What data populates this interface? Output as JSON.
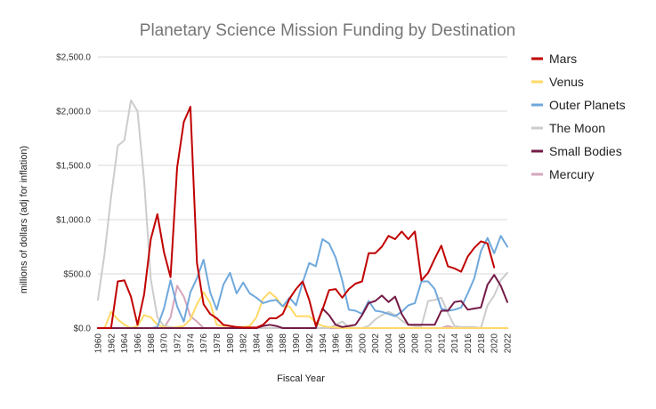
{
  "chart_data": {
    "type": "line",
    "title": "Planetary Science Mission Funding by Destination",
    "xlabel": "Fiscal Year",
    "ylabel": "millions of dollars (adj for inflation)",
    "xlim": [
      1960,
      2022
    ],
    "ylim": [
      0,
      2500
    ],
    "y_ticks": [
      0,
      500,
      1000,
      1500,
      2000,
      2500
    ],
    "y_tick_labels": [
      "$0.0",
      "$500.0",
      "$1,000.0",
      "$1,500.0",
      "$2,000.0",
      "$2,500.0"
    ],
    "x_tick_labels": [
      "1960",
      "1962",
      "1964",
      "1966",
      "1968",
      "1970",
      "1972",
      "1974",
      "1976",
      "1978",
      "1980",
      "1982",
      "1984",
      "1986",
      "1988",
      "1990",
      "1992",
      "1994",
      "1996",
      "1998",
      "2000",
      "2002",
      "2004",
      "2006",
      "2008",
      "2010",
      "2012",
      "2014",
      "2016",
      "2018",
      "2020",
      "2022"
    ],
    "grid": "horizontal",
    "legend_position": "right",
    "x": [
      1960,
      1961,
      1962,
      1963,
      1964,
      1965,
      1966,
      1967,
      1968,
      1969,
      1970,
      1971,
      1972,
      1973,
      1974,
      1975,
      1976,
      1977,
      1978,
      1979,
      1980,
      1981,
      1982,
      1983,
      1984,
      1985,
      1986,
      1987,
      1988,
      1989,
      1990,
      1991,
      1992,
      1993,
      1994,
      1995,
      1996,
      1997,
      1998,
      1999,
      2000,
      2001,
      2002,
      2003,
      2004,
      2005,
      2006,
      2007,
      2008,
      2009,
      2010,
      2011,
      2012,
      2013,
      2014,
      2015,
      2016,
      2017,
      2018,
      2019,
      2020,
      2021,
      2022
    ],
    "series": [
      {
        "name": "Mars",
        "color": "#c00000",
        "values": [
          0,
          0,
          0,
          430,
          440,
          290,
          30,
          310,
          820,
          1050,
          700,
          470,
          1480,
          1900,
          2040,
          600,
          220,
          130,
          90,
          30,
          20,
          10,
          5,
          5,
          5,
          30,
          90,
          90,
          130,
          270,
          360,
          430,
          260,
          20,
          170,
          350,
          360,
          280,
          360,
          410,
          430,
          690,
          690,
          750,
          850,
          820,
          890,
          820,
          890,
          440,
          510,
          640,
          760,
          570,
          550,
          520,
          660,
          740,
          800,
          780,
          560,
          null,
          null
        ]
      },
      {
        "name": "Venus",
        "color": "#ffd966",
        "values": [
          0,
          0,
          150,
          80,
          30,
          0,
          20,
          120,
          100,
          30,
          10,
          0,
          10,
          20,
          80,
          220,
          330,
          230,
          30,
          20,
          20,
          10,
          10,
          20,
          100,
          270,
          330,
          280,
          200,
          200,
          110,
          110,
          110,
          50,
          20,
          10,
          5,
          0,
          0,
          0,
          0,
          0,
          0,
          0,
          0,
          0,
          0,
          0,
          0,
          0,
          0,
          0,
          0,
          0,
          0,
          0,
          0,
          0,
          0,
          0,
          0,
          0,
          0
        ]
      },
      {
        "name": "Outer Planets",
        "color": "#6fa8dc",
        "values": [
          0,
          0,
          0,
          0,
          0,
          0,
          0,
          0,
          0,
          10,
          180,
          440,
          200,
          60,
          330,
          460,
          630,
          330,
          170,
          400,
          510,
          320,
          420,
          320,
          280,
          230,
          250,
          260,
          200,
          280,
          210,
          420,
          600,
          570,
          820,
          780,
          650,
          440,
          170,
          160,
          130,
          250,
          160,
          150,
          130,
          110,
          150,
          210,
          230,
          430,
          430,
          360,
          180,
          160,
          170,
          190,
          320,
          460,
          710,
          830,
          690,
          850,
          750
        ]
      },
      {
        "name": "The Moon",
        "color": "#cccccc",
        "values": [
          260,
          680,
          1210,
          1680,
          1730,
          2100,
          2000,
          1360,
          450,
          100,
          20,
          10,
          5,
          0,
          0,
          0,
          0,
          0,
          0,
          0,
          0,
          0,
          0,
          0,
          0,
          0,
          0,
          0,
          0,
          0,
          0,
          0,
          0,
          0,
          0,
          0,
          30,
          60,
          10,
          0,
          0,
          20,
          80,
          120,
          150,
          120,
          70,
          30,
          20,
          20,
          250,
          260,
          280,
          140,
          20,
          10,
          10,
          10,
          0,
          210,
          300,
          440,
          510
        ]
      },
      {
        "name": "Small Bodies",
        "color": "#741b47",
        "values": [
          0,
          0,
          0,
          0,
          0,
          0,
          0,
          0,
          0,
          0,
          0,
          0,
          0,
          0,
          0,
          0,
          0,
          0,
          0,
          0,
          0,
          0,
          0,
          0,
          0,
          20,
          30,
          20,
          0,
          0,
          0,
          0,
          0,
          0,
          180,
          120,
          30,
          10,
          20,
          30,
          120,
          230,
          250,
          300,
          240,
          290,
          130,
          30,
          30,
          30,
          30,
          30,
          160,
          160,
          240,
          250,
          170,
          180,
          190,
          400,
          490,
          390,
          240
        ]
      },
      {
        "name": "Mercury",
        "color": "#d5a6bd",
        "values": [
          0,
          0,
          0,
          0,
          0,
          0,
          0,
          0,
          0,
          0,
          0,
          100,
          390,
          290,
          110,
          60,
          0,
          0,
          0,
          0,
          0,
          0,
          0,
          0,
          0,
          0,
          0,
          0,
          0,
          0,
          0,
          0,
          0,
          0,
          0,
          0,
          0,
          0,
          0,
          0,
          0,
          0,
          0,
          0,
          0,
          0,
          0,
          0,
          0,
          0,
          0,
          0,
          0,
          20,
          0,
          0,
          0,
          0,
          0,
          0,
          0,
          0,
          0
        ]
      }
    ]
  }
}
